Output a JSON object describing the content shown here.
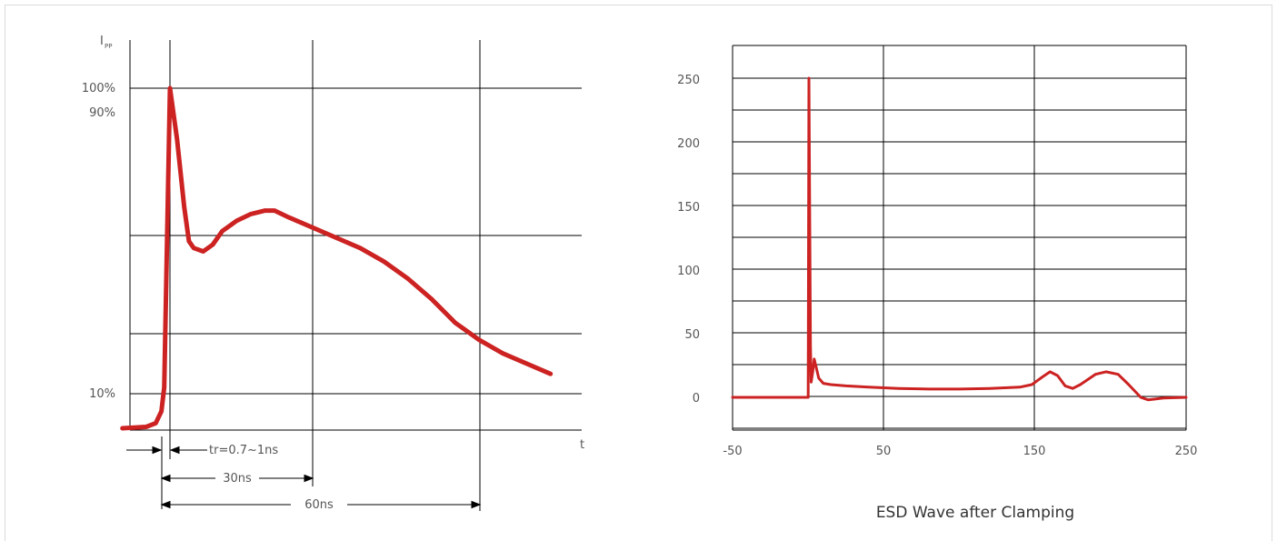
{
  "chart_data": [
    {
      "type": "line",
      "title": "",
      "ylabel_main": "I",
      "ylabel_sub": "PP",
      "xlabel": "t",
      "y_ticks": [
        "100%",
        "90%",
        "10%"
      ],
      "annotations": {
        "rise_time": "tr=0.7~1ns",
        "span_30": "30ns",
        "span_60": "60ns"
      },
      "series": [
        {
          "color": "#cc2222",
          "points": [
            [
              -10,
              0
            ],
            [
              -5,
              0.4
            ],
            [
              -3,
              1.5
            ],
            [
              -1.8,
              5
            ],
            [
              -1.2,
              12
            ],
            [
              0,
              100
            ],
            [
              1.5,
              85
            ],
            [
              3,
              65
            ],
            [
              4,
              55
            ],
            [
              5,
              53
            ],
            [
              7,
              52
            ],
            [
              9,
              54
            ],
            [
              11,
              58
            ],
            [
              14,
              61
            ],
            [
              17,
              63
            ],
            [
              20,
              64
            ],
            [
              22,
              64
            ],
            [
              25,
              62
            ],
            [
              30,
              59
            ],
            [
              35,
              56
            ],
            [
              40,
              53
            ],
            [
              45,
              49
            ],
            [
              50,
              44
            ],
            [
              55,
              38
            ],
            [
              60,
              31
            ],
            [
              65,
              26
            ],
            [
              70,
              22
            ],
            [
              75,
              19
            ],
            [
              80,
              16
            ]
          ]
        }
      ]
    },
    {
      "type": "line",
      "title": "ESD Wave after Clamping",
      "x_ticks": [
        "-50",
        "50",
        "150",
        "250"
      ],
      "y_ticks": [
        "250",
        "200",
        "150",
        "100",
        "50",
        "0"
      ],
      "xlim": [
        -50,
        250
      ],
      "ylim": [
        -25,
        250
      ],
      "series": [
        {
          "color": "#cc2222",
          "points": [
            [
              -50,
              0
            ],
            [
              0,
              0
            ],
            [
              0.5,
              250
            ],
            [
              1.5,
              40
            ],
            [
              2,
              12
            ],
            [
              3,
              20
            ],
            [
              4,
              30
            ],
            [
              5,
              25
            ],
            [
              7,
              15
            ],
            [
              10,
              11
            ],
            [
              15,
              10
            ],
            [
              25,
              9
            ],
            [
              40,
              8
            ],
            [
              60,
              7
            ],
            [
              80,
              6.5
            ],
            [
              100,
              6.5
            ],
            [
              120,
              7
            ],
            [
              140,
              8
            ],
            [
              148,
              10
            ],
            [
              155,
              16
            ],
            [
              160,
              20
            ],
            [
              165,
              17
            ],
            [
              170,
              9
            ],
            [
              175,
              7
            ],
            [
              180,
              10
            ],
            [
              190,
              18
            ],
            [
              197,
              20
            ],
            [
              205,
              18
            ],
            [
              212,
              10
            ],
            [
              220,
              0
            ],
            [
              225,
              -2
            ],
            [
              235,
              -0.5
            ],
            [
              250,
              0
            ]
          ]
        }
      ]
    }
  ]
}
